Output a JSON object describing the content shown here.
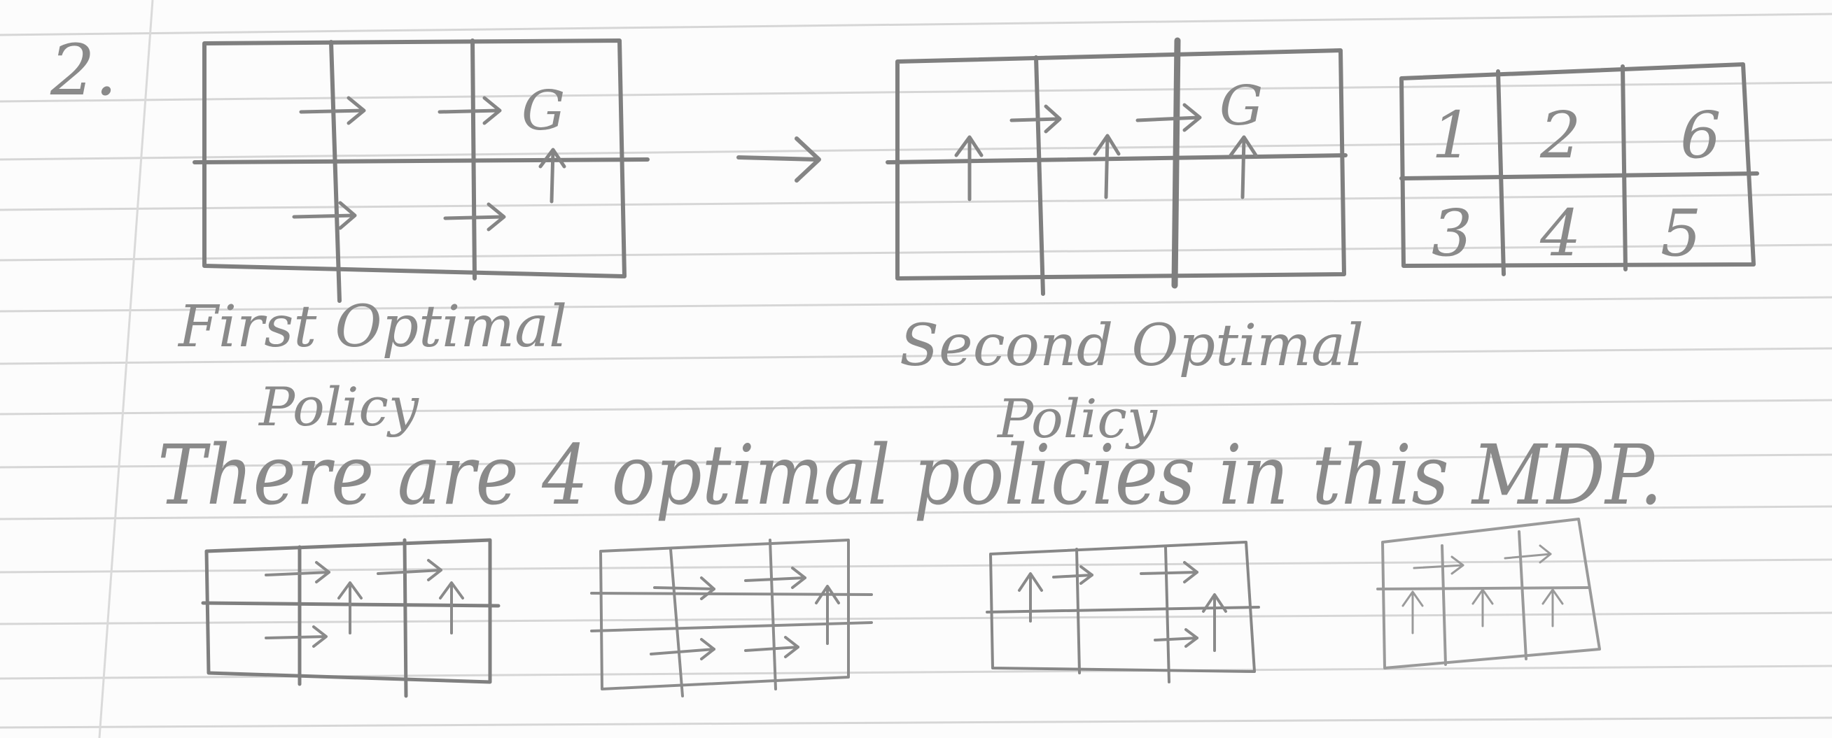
{
  "page": {
    "problem_number": "2.",
    "paper_line_color": "#d4d4d4",
    "margin_line_color": "#e0e0e0",
    "pencil_color": "#8a8a8a"
  },
  "diagrams": {
    "first_policy": {
      "label_line1": "First Optimal",
      "label_line2": "Policy",
      "goal_label": "G",
      "arrows": {
        "top": [
          "right",
          "right",
          "goal"
        ],
        "bottom": [
          "right",
          "right",
          "up"
        ]
      }
    },
    "transition_arrow": "→",
    "second_policy": {
      "label_line1": "Second Optimal",
      "label_line2": "Policy",
      "goal_label": "G",
      "arrows": {
        "top": [
          "right",
          "right",
          "goal"
        ],
        "bottom": [
          "up",
          "up",
          "up"
        ]
      }
    },
    "state_numbers": {
      "top": [
        "1",
        "2",
        "6"
      ],
      "bottom": [
        "3",
        "4",
        "5"
      ]
    }
  },
  "statement": "There are 4 optimal policies in this MDP.",
  "small_policies": [
    {
      "top": [
        "right",
        "right",
        "none"
      ],
      "bottom": [
        "right",
        "up",
        "up"
      ]
    },
    {
      "top": [
        "right",
        "right",
        "none"
      ],
      "bottom": [
        "right",
        "right",
        "up"
      ]
    },
    {
      "top": [
        "up",
        "right",
        "right"
      ],
      "bottom": [
        "none",
        "right",
        "up"
      ]
    },
    {
      "top": [
        "none",
        "right",
        "right"
      ],
      "bottom": [
        "up",
        "up",
        "up"
      ]
    }
  ]
}
